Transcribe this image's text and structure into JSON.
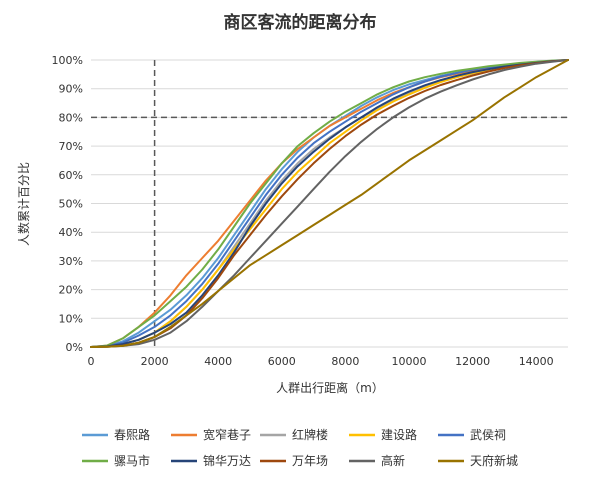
{
  "chart_data": {
    "type": "line",
    "title": "商区客流的距离分布",
    "xlabel": "人群出行距离（m）",
    "ylabel": "人数累计百分比",
    "xlim": [
      0,
      15000
    ],
    "ylim": [
      0,
      100
    ],
    "x_ticks": [
      "0",
      "2000",
      "4000",
      "6000",
      "8000",
      "10000",
      "12000",
      "14000"
    ],
    "y_ticks": [
      "0%",
      "10%",
      "20%",
      "30%",
      "40%",
      "50%",
      "60%",
      "70%",
      "80%",
      "90%",
      "100%"
    ],
    "grid": "horizontal",
    "legend_position": "bottom",
    "reference_lines": [
      {
        "axis": "x",
        "value": 2000,
        "style": "dashed"
      },
      {
        "axis": "y",
        "value": 80,
        "style": "dashed"
      }
    ],
    "x": [
      0,
      500,
      1000,
      1500,
      2000,
      2500,
      3000,
      3500,
      4000,
      4500,
      5000,
      5500,
      6000,
      6500,
      7000,
      7500,
      8000,
      8500,
      9000,
      9500,
      10000,
      10500,
      11000,
      11500,
      12000,
      12500,
      13000,
      13500,
      14000,
      14500,
      15000
    ],
    "series": [
      {
        "name": "春熙路",
        "color": "#5b9bd5",
        "values": [
          0,
          0.3,
          2,
          5,
          9,
          13,
          18,
          24,
          31,
          39,
          47,
          55,
          62,
          68,
          73,
          77,
          80.5,
          84,
          87,
          89.5,
          91.5,
          93,
          94.5,
          95.5,
          96.5,
          97.3,
          98,
          98.7,
          99.2,
          99.6,
          100
        ]
      },
      {
        "name": "宽窄巷子",
        "color": "#ed7d31",
        "values": [
          0,
          0.5,
          3,
          7,
          12,
          18,
          25,
          31,
          37,
          44,
          51,
          58,
          64,
          69,
          73,
          77,
          80,
          83,
          86,
          88.5,
          90.5,
          92.5,
          94,
          95.2,
          96.2,
          97.1,
          97.9,
          98.6,
          99.2,
          99.6,
          100
        ]
      },
      {
        "name": "红牌楼",
        "color": "#a5a5a5",
        "values": [
          0,
          0.2,
          1,
          2.5,
          5,
          9,
          14,
          20,
          27,
          35,
          43,
          51,
          58,
          64,
          69,
          73,
          76.5,
          80,
          83,
          86,
          88.5,
          90.5,
          92.5,
          94,
          95.3,
          96.5,
          97.5,
          98.3,
          99,
          99.6,
          100
        ]
      },
      {
        "name": "建设路",
        "color": "#ffc000",
        "values": [
          0,
          0.2,
          1,
          2.5,
          5,
          9,
          14,
          20,
          27,
          34,
          41,
          48,
          55,
          61,
          66,
          71,
          75,
          79,
          82.5,
          85.5,
          88,
          90.3,
          92.3,
          94,
          95.4,
          96.6,
          97.6,
          98.4,
          99.1,
          99.6,
          100
        ]
      },
      {
        "name": "武侯祠",
        "color": "#4472c4",
        "values": [
          0,
          0.3,
          1.5,
          4,
          7,
          11,
          16,
          22,
          29,
          37,
          45,
          53,
          60,
          66,
          71,
          75,
          78.5,
          82,
          85,
          88,
          90.5,
          92.5,
          94.2,
          95.5,
          96.6,
          97.5,
          98.2,
          98.9,
          99.3,
          99.7,
          100
        ]
      },
      {
        "name": "骡马市",
        "color": "#70ad47",
        "values": [
          0,
          0.5,
          3,
          7,
          11,
          16,
          21,
          27,
          34,
          42,
          50,
          57,
          64,
          70,
          74.5,
          78.5,
          82,
          85,
          88,
          90.5,
          92.5,
          94,
          95.2,
          96.2,
          97,
          97.8,
          98.4,
          99,
          99.4,
          99.8,
          100
        ]
      },
      {
        "name": "锦华万达",
        "color": "#264478",
        "values": [
          0,
          0.2,
          1,
          2.5,
          5,
          8,
          12,
          18,
          25,
          33,
          42,
          50,
          57,
          63,
          68,
          72.5,
          76.5,
          80,
          83.5,
          86.5,
          89,
          91.2,
          93,
          94.5,
          95.8,
          96.8,
          97.7,
          98.4,
          99,
          99.6,
          100
        ]
      },
      {
        "name": "万年场",
        "color": "#9e480e",
        "values": [
          0,
          0.1,
          0.5,
          1.5,
          3.5,
          6.5,
          11,
          17,
          24,
          32,
          39,
          46,
          52.5,
          58.5,
          64,
          69,
          73.5,
          77.5,
          81,
          84,
          86.8,
          89.2,
          91.3,
          93,
          94.6,
          96,
          97.2,
          98.2,
          98.9,
          99.5,
          100
        ]
      },
      {
        "name": "高新",
        "color": "#636363",
        "values": [
          0,
          0.1,
          0.4,
          1,
          2.5,
          5,
          9,
          14,
          19.5,
          25,
          31,
          37,
          43,
          49,
          55,
          61,
          66.5,
          71.5,
          76,
          80,
          83.5,
          86.5,
          89,
          91.2,
          93.2,
          95,
          96.5,
          97.7,
          98.7,
          99.4,
          100
        ]
      },
      {
        "name": "天府新城",
        "color": "#997300",
        "values": [
          0,
          0.1,
          0.4,
          1.5,
          3.5,
          7,
          11,
          15,
          19.5,
          24,
          28.5,
          32,
          35.5,
          39,
          42.5,
          46,
          49.5,
          53,
          57,
          61,
          65,
          68.5,
          72,
          75.5,
          79,
          83,
          87,
          90.5,
          94,
          97,
          100
        ]
      }
    ]
  }
}
